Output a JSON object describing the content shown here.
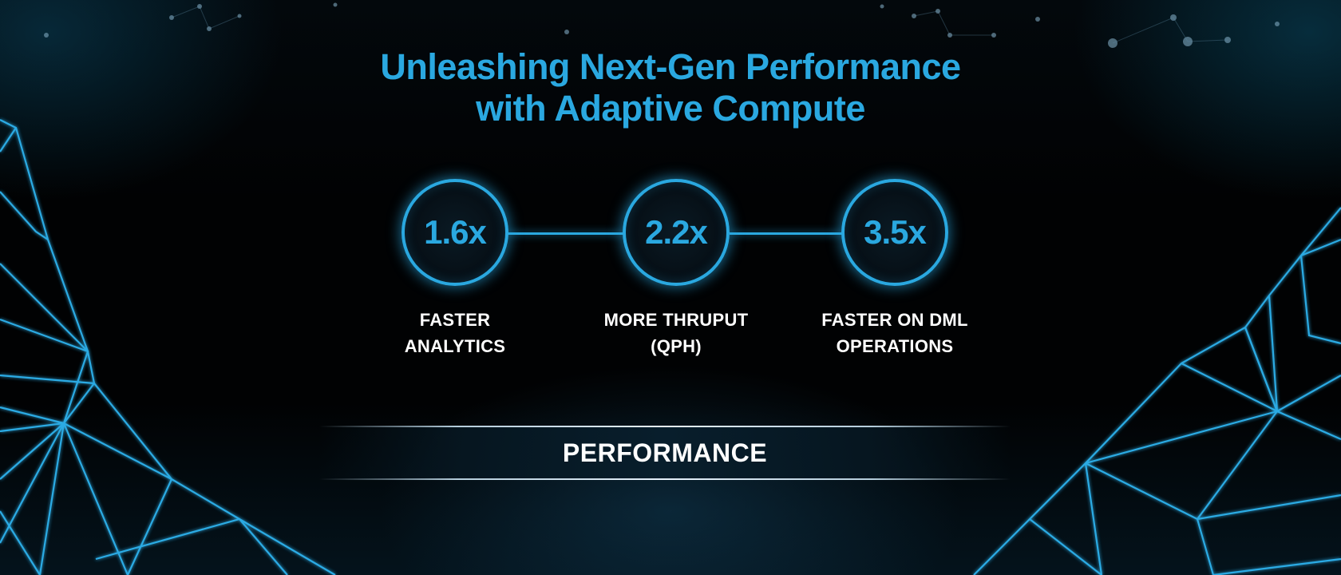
{
  "headline": {
    "line1": "Unleashing Next-Gen Performance",
    "line2": "with Adaptive Compute"
  },
  "metrics": [
    {
      "value": "1.6x",
      "label_line1": "FASTER",
      "label_line2": "ANALYTICS"
    },
    {
      "value": "2.2x",
      "label_line1": "MORE THRUPUT",
      "label_line2": "(QPH)"
    },
    {
      "value": "3.5x",
      "label_line1": "FASTER ON DML",
      "label_line2": "OPERATIONS"
    }
  ],
  "banner": {
    "label": "PERFORMANCE"
  },
  "colors": {
    "accent": "#2aa8e0",
    "text": "#ffffff",
    "background": "#020406"
  }
}
